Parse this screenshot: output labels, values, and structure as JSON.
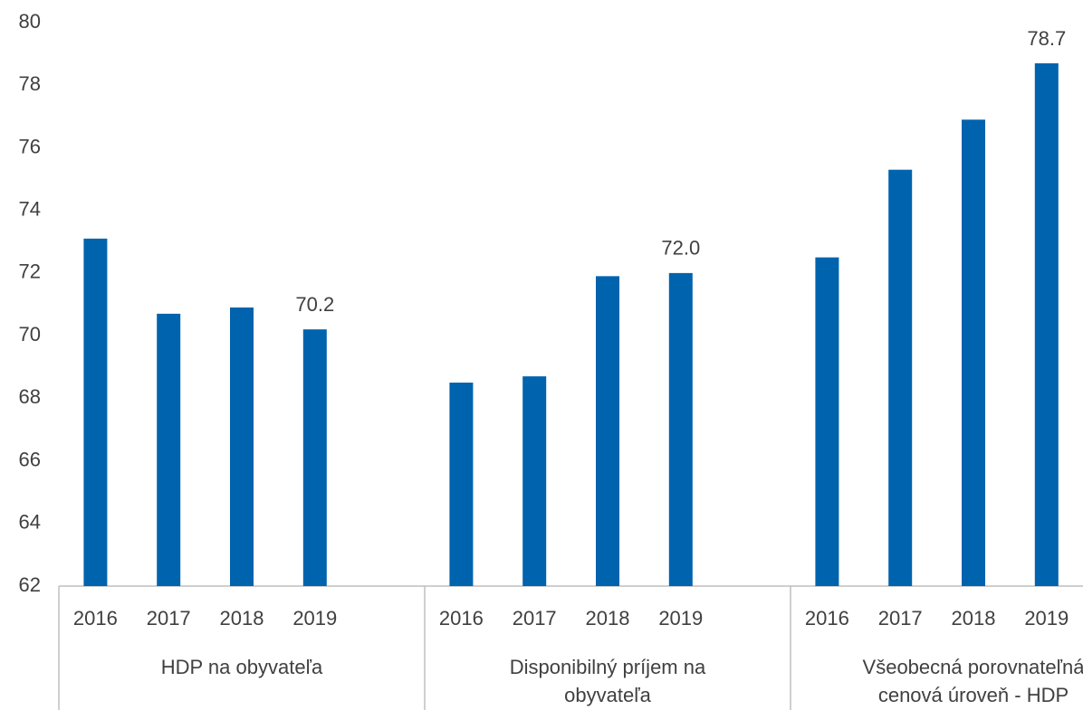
{
  "chart_data": {
    "type": "bar",
    "color": "#0063ae",
    "ylim": [
      62,
      80
    ],
    "yticks": [
      62,
      64,
      66,
      68,
      70,
      72,
      74,
      76,
      78,
      80
    ],
    "groups": [
      {
        "name": "HDP na obyvateľa",
        "categories": [
          "2016",
          "2017",
          "2018",
          "2019"
        ],
        "values": [
          73.1,
          70.7,
          70.9,
          70.2
        ],
        "value_labels": [
          null,
          null,
          null,
          "70.2"
        ]
      },
      {
        "name": "Disponibilný príjem na obyvateľa",
        "categories": [
          "2016",
          "2017",
          "2018",
          "2019"
        ],
        "values": [
          68.5,
          68.7,
          71.9,
          72.0
        ],
        "value_labels": [
          null,
          null,
          null,
          "72.0"
        ]
      },
      {
        "name": "Všeobecná porovnateľná cenová úroveň - HDP",
        "categories": [
          "2016",
          "2017",
          "2018",
          "2019"
        ],
        "values": [
          72.5,
          75.3,
          76.9,
          78.7
        ],
        "value_labels": [
          null,
          null,
          null,
          "78.7"
        ]
      }
    ]
  }
}
